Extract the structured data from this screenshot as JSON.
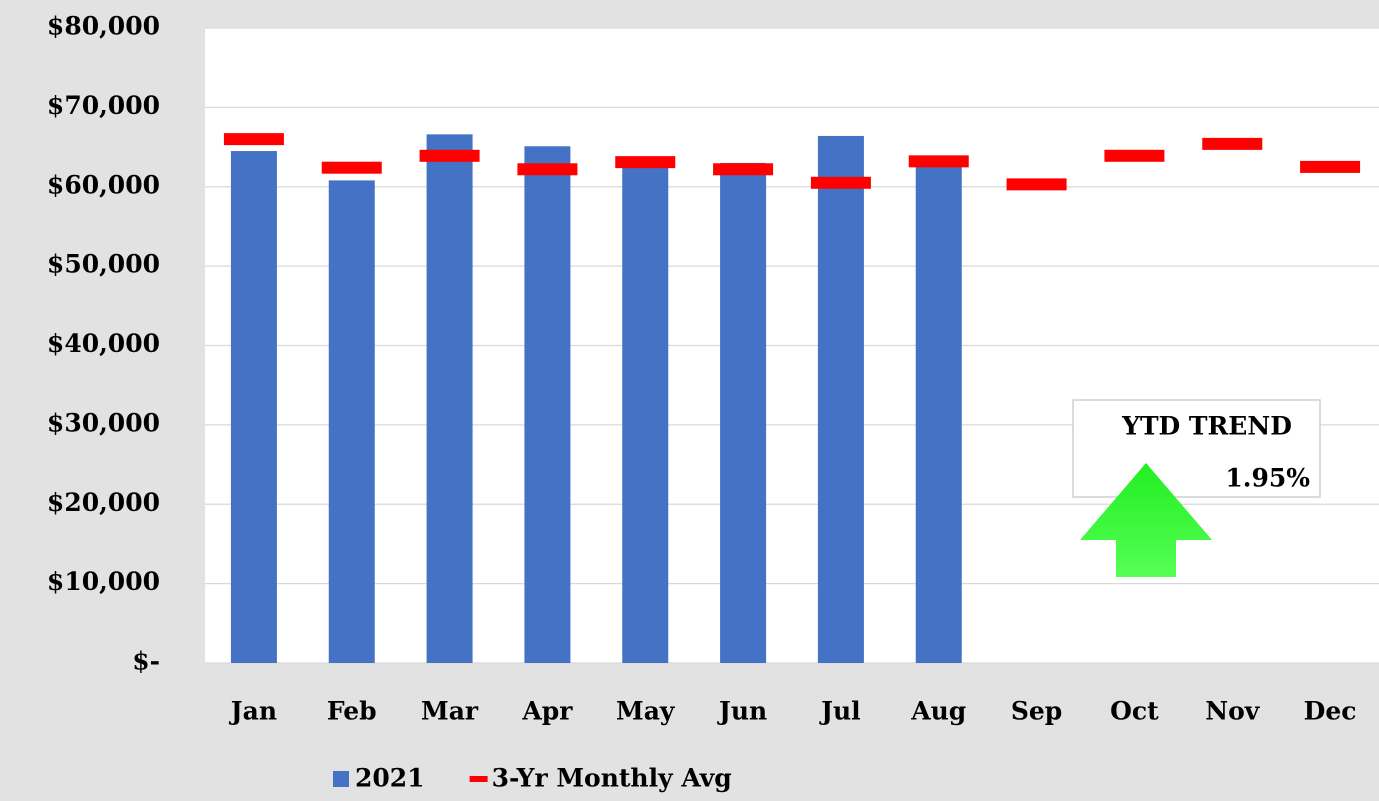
{
  "chart_data": {
    "type": "bar",
    "categories": [
      "Jan",
      "Feb",
      "Mar",
      "Apr",
      "May",
      "Jun",
      "Jul",
      "Aug",
      "Sep",
      "Oct",
      "Nov",
      "Dec"
    ],
    "series": [
      {
        "name": "2021",
        "type": "bar",
        "color": "#4472c4",
        "values": [
          64500,
          60800,
          66600,
          65100,
          62700,
          63000,
          66400,
          62900,
          null,
          null,
          null,
          null
        ]
      },
      {
        "name": "3-Yr Monthly Avg",
        "type": "line",
        "marker": "dash",
        "color": "#ff0000",
        "values": [
          66000,
          62400,
          63900,
          62200,
          63100,
          62200,
          60500,
          63200,
          60300,
          63900,
          65400,
          62500
        ]
      }
    ],
    "ylim": [
      0,
      80000
    ],
    "yticks": [
      {
        "value": 0,
        "label": "$-"
      },
      {
        "value": 10000,
        "label": "$10,000"
      },
      {
        "value": 20000,
        "label": "$20,000"
      },
      {
        "value": 30000,
        "label": "$30,000"
      },
      {
        "value": 40000,
        "label": "$40,000"
      },
      {
        "value": 50000,
        "label": "$50,000"
      },
      {
        "value": 60000,
        "label": "$60,000"
      },
      {
        "value": 70000,
        "label": "$70,000"
      },
      {
        "value": 80000,
        "label": "$80,000"
      }
    ],
    "grid": true,
    "legend": "bottom",
    "annotations": [
      "YTD TREND",
      "1.95%"
    ]
  }
}
